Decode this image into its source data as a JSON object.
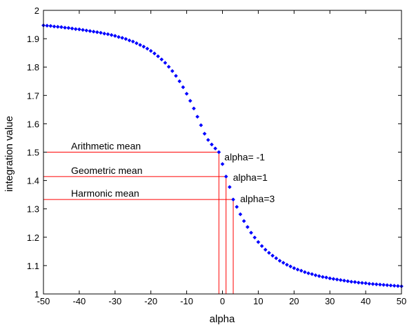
{
  "chart_data": {
    "type": "scatter",
    "title": "",
    "xlabel": "alpha",
    "ylabel": "integration value",
    "xlim": [
      -50,
      50
    ],
    "ylim": [
      1,
      2
    ],
    "xticks": [
      "-50",
      "-40",
      "-30",
      "-20",
      "-10",
      "0",
      "10",
      "20",
      "30",
      "40",
      "50"
    ],
    "yticks": [
      "1",
      "1.1",
      "1.2",
      "1.3",
      "1.4",
      "1.5",
      "1.6",
      "1.7",
      "1.8",
      "1.9",
      "2"
    ],
    "grid": false,
    "legend": "none",
    "marker_color": "#0000ff",
    "line_color": "#ff0000",
    "series": [
      {
        "marker": "diamond",
        "x": [
          -50,
          -49,
          -48,
          -47,
          -46,
          -45,
          -44,
          -43,
          -42,
          -41,
          -40,
          -39,
          -38,
          -37,
          -36,
          -35,
          -34,
          -33,
          -32,
          -31,
          -30,
          -29,
          -28,
          -27,
          -26,
          -25,
          -24,
          -23,
          -22,
          -21,
          -20,
          -19,
          -18,
          -17,
          -16,
          -15,
          -14,
          -13,
          -12,
          -11,
          -10,
          -9,
          -8,
          -7,
          -6,
          -5,
          -4,
          -3,
          -2,
          -1,
          0,
          1,
          2,
          3,
          4,
          5,
          6,
          7,
          8,
          9,
          10,
          11,
          12,
          13,
          14,
          15,
          16,
          17,
          18,
          19,
          20,
          21,
          22,
          23,
          24,
          25,
          26,
          27,
          28,
          29,
          30,
          31,
          32,
          33,
          34,
          35,
          36,
          37,
          38,
          39,
          40,
          41,
          42,
          43,
          44,
          45,
          46,
          47,
          48,
          49,
          50
        ],
        "y": [
          1.947,
          1.946,
          1.945,
          1.943,
          1.942,
          1.941,
          1.939,
          1.938,
          1.936,
          1.934,
          1.933,
          1.931,
          1.929,
          1.927,
          1.925,
          1.923,
          1.921,
          1.918,
          1.916,
          1.913,
          1.91,
          1.906,
          1.903,
          1.899,
          1.894,
          1.89,
          1.884,
          1.878,
          1.872,
          1.865,
          1.857,
          1.848,
          1.838,
          1.827,
          1.815,
          1.801,
          1.786,
          1.769,
          1.75,
          1.729,
          1.706,
          1.681,
          1.654,
          1.625,
          1.595,
          1.565,
          1.543,
          1.527,
          1.513,
          1.5,
          1.458,
          1.414,
          1.377,
          1.333,
          1.307,
          1.281,
          1.257,
          1.236,
          1.216,
          1.199,
          1.183,
          1.169,
          1.156,
          1.145,
          1.135,
          1.126,
          1.117,
          1.11,
          1.103,
          1.097,
          1.091,
          1.086,
          1.082,
          1.077,
          1.073,
          1.07,
          1.066,
          1.063,
          1.06,
          1.058,
          1.055,
          1.053,
          1.051,
          1.049,
          1.047,
          1.045,
          1.043,
          1.042,
          1.04,
          1.039,
          1.038,
          1.036,
          1.035,
          1.034,
          1.033,
          1.032,
          1.031,
          1.03,
          1.029,
          1.028,
          1.027
        ]
      }
    ],
    "reference_lines": [
      {
        "label": "Arithmetic mean",
        "alpha_label": "alpha= -1",
        "x": -1,
        "y": 1.5
      },
      {
        "label": "Geometric mean",
        "alpha_label": "alpha=1",
        "x": 1,
        "y": 1.414
      },
      {
        "label": "Harmonic mean",
        "alpha_label": "alpha=3",
        "x": 3,
        "y": 1.333
      }
    ]
  }
}
